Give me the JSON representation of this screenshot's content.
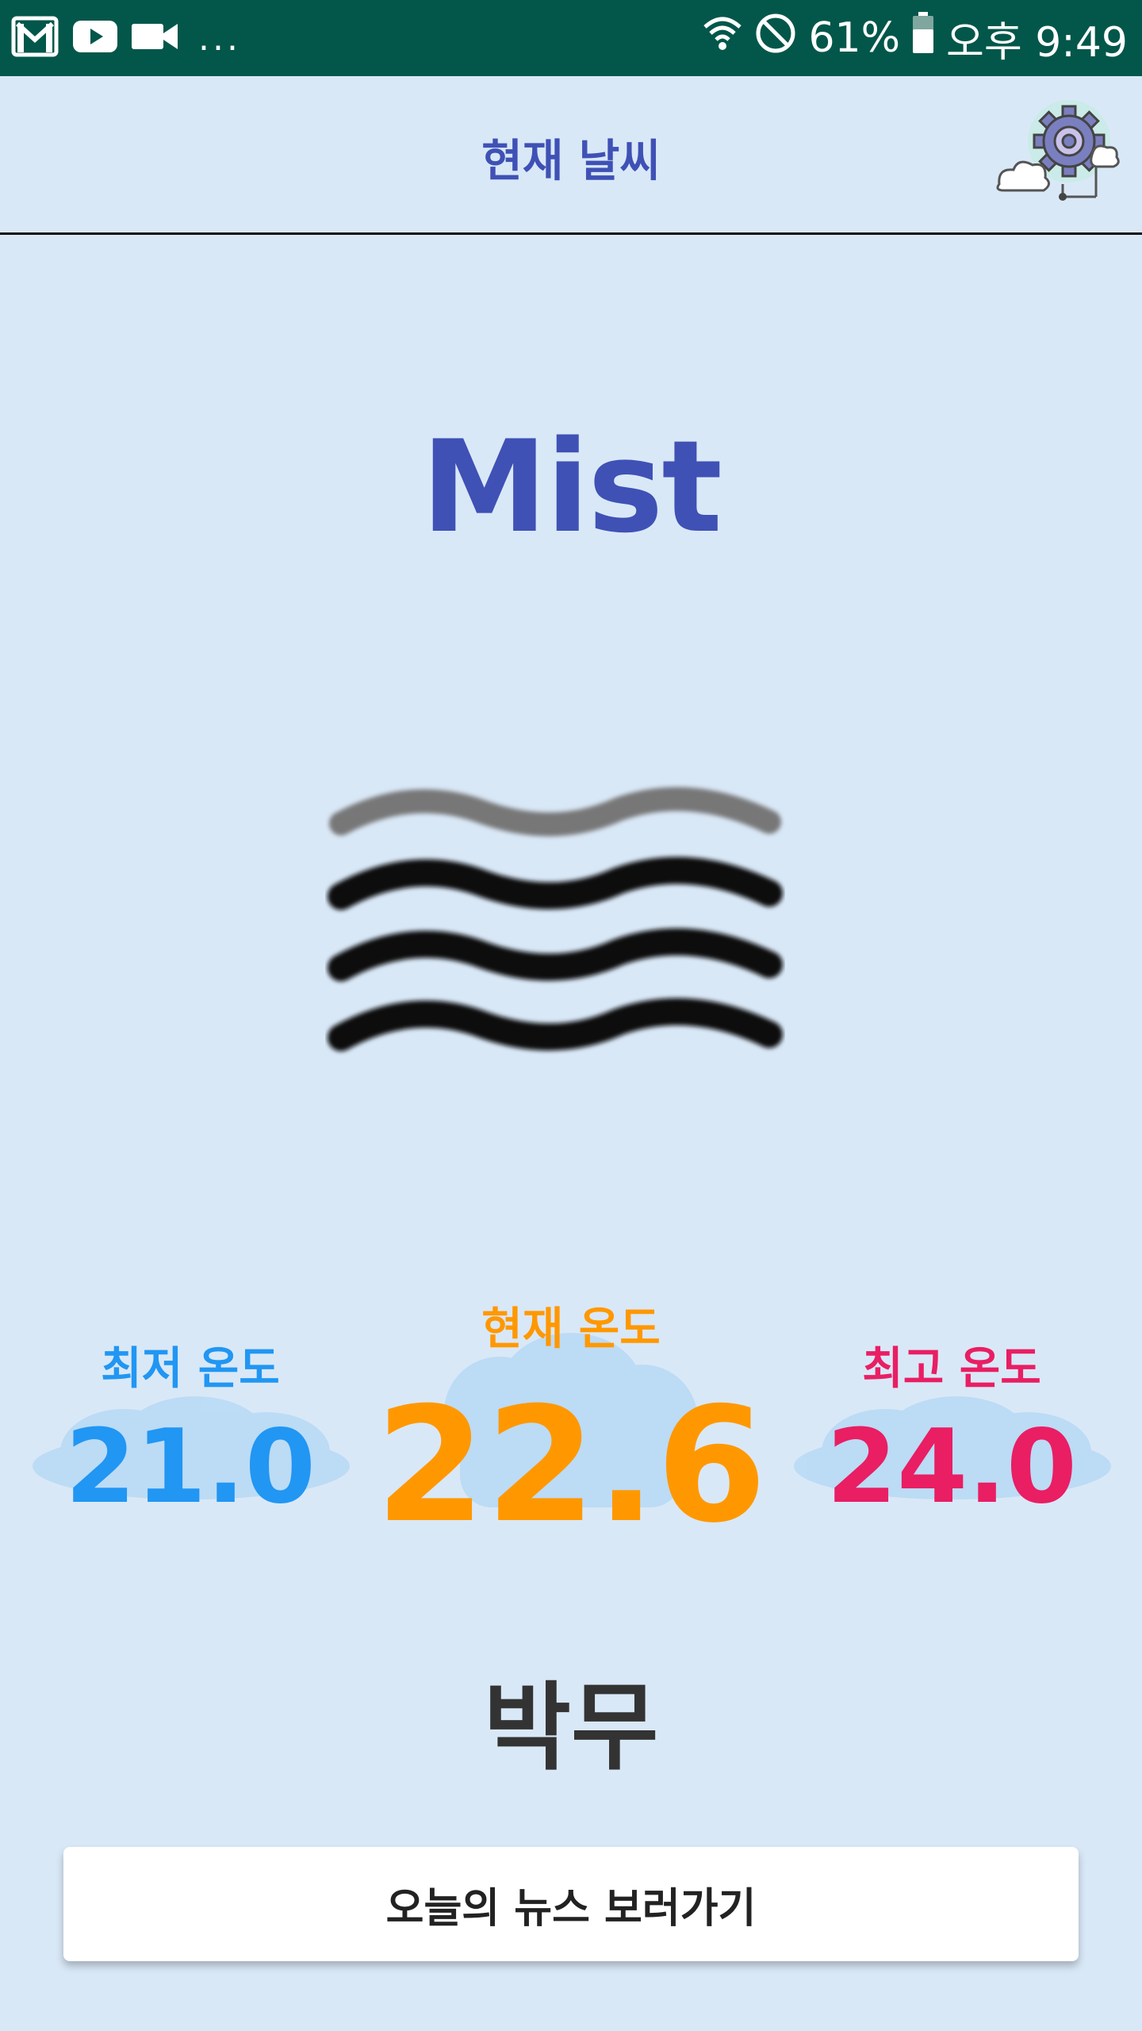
{
  "status_bar": {
    "battery_percent": "61%",
    "time": "오후 9:49",
    "overflow_indicator": "...",
    "icons": [
      "gmail-icon",
      "youtube-icon",
      "video-camera-icon",
      "wifi-icon",
      "do-not-disturb-icon",
      "battery-icon"
    ]
  },
  "header": {
    "title": "현재 날씨",
    "settings_icon": "gear-icon"
  },
  "weather": {
    "condition": "Mist",
    "condition_icon": "mist-icon",
    "description_kr": "박무"
  },
  "temperatures": {
    "min": {
      "label": "최저 온도",
      "value": "21.0",
      "color": "#2196f3"
    },
    "current": {
      "label": "현재 온도",
      "value": "22.6",
      "color": "#ff9800"
    },
    "max": {
      "label": "최고 온도",
      "value": "24.0",
      "color": "#e91e63"
    }
  },
  "news_button": {
    "label": "오늘의 뉴스 보러가기"
  },
  "colors": {
    "background": "#d9e8f7",
    "status_bar": "#02574a",
    "accent": "#3f51b5",
    "cloud": "#b7d9f5"
  }
}
